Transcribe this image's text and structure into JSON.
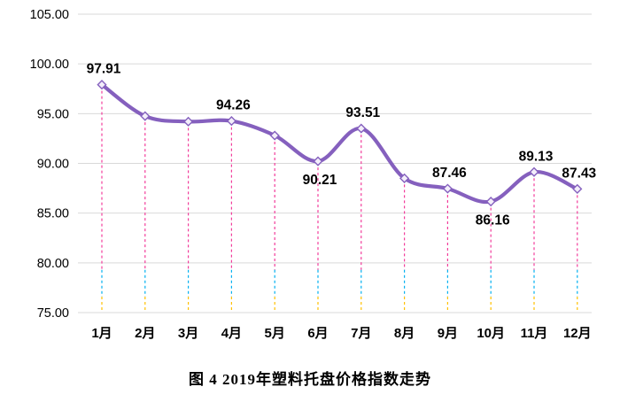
{
  "chart_data": {
    "type": "line",
    "title": "图 4  2019年塑料托盘价格指数走势",
    "categories": [
      "1月",
      "2月",
      "3月",
      "4月",
      "5月",
      "6月",
      "7月",
      "8月",
      "9月",
      "10月",
      "11月",
      "12月"
    ],
    "values": [
      97.91,
      94.75,
      94.2,
      94.26,
      92.8,
      90.21,
      93.51,
      88.5,
      87.46,
      86.16,
      89.13,
      87.43
    ],
    "data_labels": [
      {
        "index": 0,
        "text": "97.91",
        "placement": "above"
      },
      {
        "index": 3,
        "text": "94.26",
        "placement": "above"
      },
      {
        "index": 5,
        "text": "90.21",
        "placement": "below"
      },
      {
        "index": 6,
        "text": "93.51",
        "placement": "above"
      },
      {
        "index": 8,
        "text": "87.46",
        "placement": "above"
      },
      {
        "index": 9,
        "text": "86.16",
        "placement": "below"
      },
      {
        "index": 10,
        "text": "89.13",
        "placement": "above"
      },
      {
        "index": 11,
        "text": "87.43",
        "placement": "above"
      }
    ],
    "ylim": [
      75,
      105
    ],
    "y_ticks": [
      "105.00",
      "100.00",
      "95.00",
      "90.00",
      "85.00",
      "80.00",
      "75.00"
    ],
    "grid": true,
    "legend": "none",
    "colors": {
      "line": "#8560BE",
      "marker_fill": "#F3EEFA",
      "dropline_top": "#F23C9B",
      "dropline_mid": "#00B0F0",
      "dropline_bottom": "#FFC000",
      "gridline": "#D9D9D9",
      "text": "#000000"
    }
  }
}
